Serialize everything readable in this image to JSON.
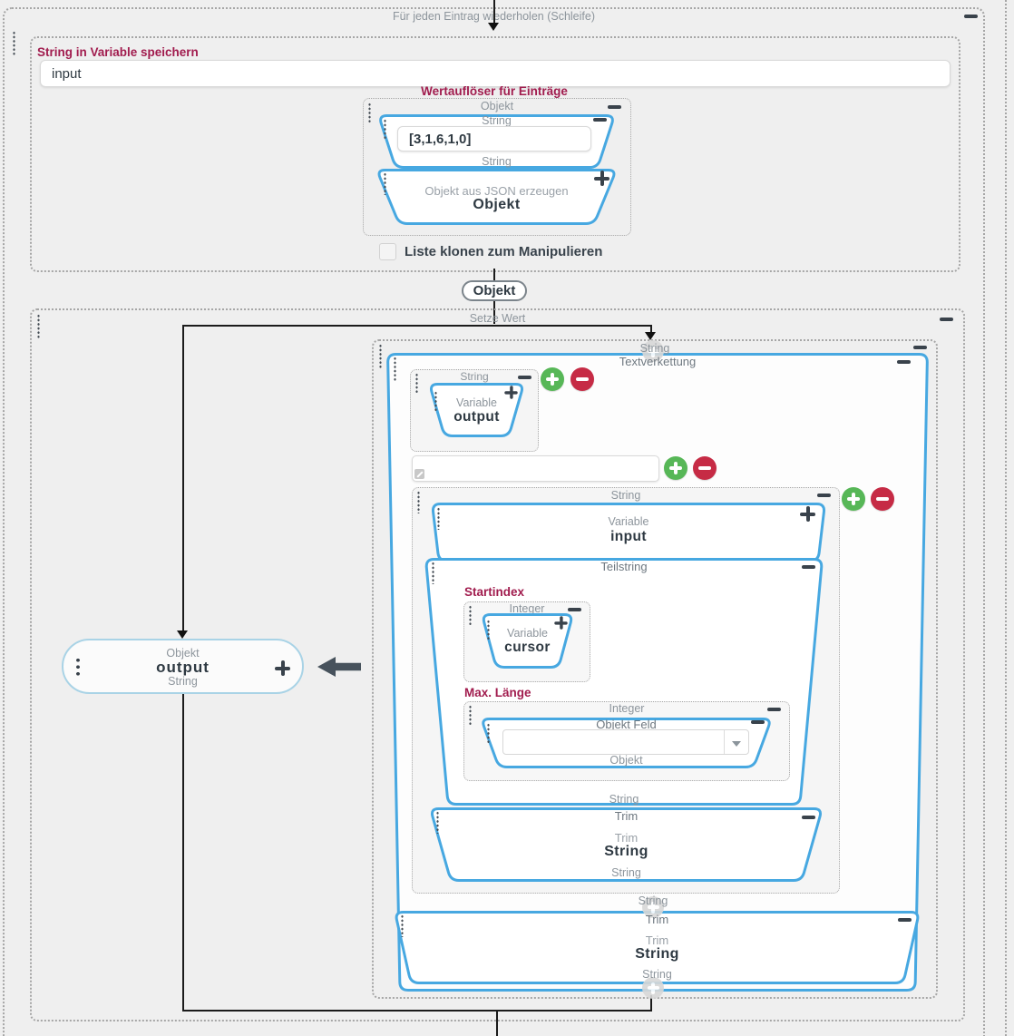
{
  "loop": {
    "title": "Für jeden Eintrag wiederholen (Schleife)"
  },
  "store_string": {
    "label": "String in Variable speichern",
    "value": "input"
  },
  "wertaufloeser": {
    "heading": "Wertauflöser für Einträge",
    "box_type": "Objekt",
    "string_block": {
      "type_top": "String",
      "value": "[3,1,6,1,0]",
      "type_bottom": "String"
    },
    "json_block": {
      "subtitle": "Objekt aus JSON erzeugen",
      "title": "Objekt"
    },
    "clone_checkbox_label": "Liste klonen zum Manipulieren"
  },
  "connector": {
    "label": "Objekt"
  },
  "setze_wert": {
    "title": "Setze Wert",
    "output_block": {
      "type": "Objekt",
      "name": "output",
      "subtype": "String"
    },
    "value_box": {
      "type": "String",
      "concat": {
        "title": "Textverkettung",
        "item1": {
          "type": "String",
          "var_label": "Variable",
          "var_name": "output"
        },
        "item2_value": "",
        "item3": {
          "type": "String",
          "source": {
            "var_label": "Variable",
            "var_name": "input"
          },
          "substring": {
            "title": "Teilstring",
            "start_label": "Startindex",
            "start": {
              "type": "Integer",
              "var_label": "Variable",
              "var_name": "cursor"
            },
            "length_label": "Max. Länge",
            "length": {
              "type": "Integer",
              "field": {
                "title": "Objekt Feld",
                "value": "",
                "type_bottom": "Objekt"
              }
            },
            "output_type": "String"
          },
          "trim": {
            "title": "Trim",
            "fn": "Trim",
            "fn_type": "String",
            "output_type": "String"
          }
        },
        "output_type": "String",
        "trim": {
          "title": "Trim",
          "fn": "Trim",
          "fn_type": "String",
          "output_type": "String"
        }
      }
    }
  },
  "icons": {
    "collapse": "minus-bar",
    "add": "plus",
    "add_item": "plus-circle",
    "remove_item": "minus-circle",
    "drag": "grip-dots",
    "dropdown": "caret-down",
    "expand_input": "resize-handle",
    "flow": "arrow-down",
    "pointer": "arrow-left"
  },
  "colors": {
    "accent_blue": "#47a8e1",
    "success_green": "#57b757",
    "danger_red": "#c62b45",
    "label_crimson": "#a11c4e"
  }
}
